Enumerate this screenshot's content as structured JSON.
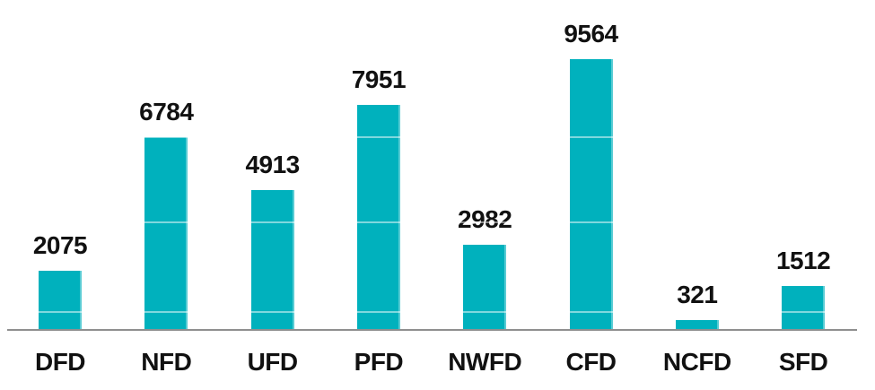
{
  "chart_data": {
    "type": "bar",
    "title": "",
    "xlabel": "",
    "ylabel": "",
    "categories": [
      "DFD",
      "NFD",
      "UFD",
      "PFD",
      "NWFD",
      "CFD",
      "NCFD",
      "SFD"
    ],
    "values": [
      2075,
      6784,
      4913,
      7951,
      2982,
      9564,
      321,
      1512
    ],
    "data_labels_shown": true,
    "y_axis_shown": false,
    "x_axis_line_shown": true,
    "legend_position": "none",
    "ylim": [
      0,
      9564
    ],
    "gridlines_note": "faint light gridlines visible only where they cross bars",
    "colors": {
      "bar": "#00B1BD",
      "bar_edge_highlight": "rgba(255,255,255,0.35)",
      "gridline_over_bars": "rgba(255,255,255,0.5)",
      "axis_line": "#8F8F8F",
      "text": "#111111",
      "background": "#FFFFFF"
    }
  }
}
